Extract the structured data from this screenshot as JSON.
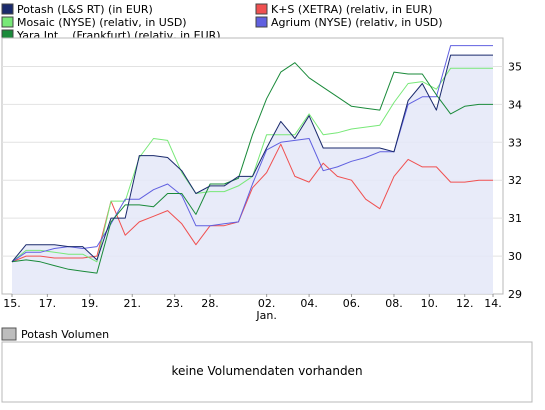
{
  "legend": [
    {
      "label": "Potash (L&S RT) (in EUR)",
      "color": "#1a2a6c"
    },
    {
      "label": "K+S (XETRA) (relativ, in EUR)",
      "color": "#f05050"
    },
    {
      "label": "Mosaic (NYSE) (relativ, in USD)",
      "color": "#78e878"
    },
    {
      "label": "Agrium (NYSE) (relativ, in USD)",
      "color": "#6060e0"
    },
    {
      "label": "Yara Int... (Frankfurt) (relativ, in EUR)",
      "color": "#1a8a3a"
    }
  ],
  "volume": {
    "title": "Potash Volumen",
    "message": "keine Volumendaten vorhanden"
  },
  "chart_data": {
    "type": "line",
    "x": [
      0,
      1,
      2,
      3,
      4,
      5,
      6,
      7,
      8,
      9,
      10,
      11,
      12,
      13,
      14,
      15,
      16,
      17,
      18,
      19,
      20,
      21,
      22,
      23,
      24,
      25,
      26,
      27,
      28,
      29,
      30,
      31,
      32,
      33,
      34
    ],
    "x_ticks": [
      {
        "i": 0,
        "label": "15."
      },
      {
        "i": 2.5,
        "label": "17."
      },
      {
        "i": 5.5,
        "label": "19."
      },
      {
        "i": 8.5,
        "label": "21."
      },
      {
        "i": 11.5,
        "label": "23."
      },
      {
        "i": 14,
        "label": "28."
      },
      {
        "i": 18,
        "label": "02.",
        "sub": "Jan."
      },
      {
        "i": 21,
        "label": "04."
      },
      {
        "i": 24,
        "label": "06."
      },
      {
        "i": 27,
        "label": "08."
      },
      {
        "i": 29.5,
        "label": "10."
      },
      {
        "i": 32,
        "label": "12."
      },
      {
        "i": 34,
        "label": "14."
      }
    ],
    "y_ticks": [
      29,
      30,
      31,
      32,
      33,
      34,
      35
    ],
    "ylim": [
      29,
      35.75
    ],
    "series": [
      {
        "name": "Potash (L&S RT) (in EUR)",
        "color": "#1a2a6c",
        "fill": true,
        "values": [
          29.85,
          30.3,
          30.3,
          30.3,
          30.25,
          30.25,
          29.9,
          31.0,
          31.0,
          32.65,
          32.65,
          32.6,
          32.25,
          31.65,
          31.85,
          31.85,
          32.1,
          32.1,
          32.85,
          33.55,
          33.1,
          33.7,
          32.85,
          32.85,
          32.85,
          32.85,
          32.85,
          32.75,
          34.1,
          34.55,
          33.85,
          35.3,
          35.3,
          35.3,
          35.3
        ]
      },
      {
        "name": "K+S (XETRA) (relativ, in EUR)",
        "color": "#f05050",
        "fill": false,
        "values": [
          29.85,
          30.0,
          30.0,
          29.95,
          29.95,
          29.95,
          30.0,
          31.45,
          30.55,
          30.9,
          31.05,
          31.2,
          30.85,
          30.3,
          30.8,
          30.8,
          30.9,
          31.8,
          32.2,
          32.95,
          32.1,
          31.95,
          32.45,
          32.1,
          32.0,
          31.5,
          31.25,
          32.1,
          32.55,
          32.35,
          32.35,
          31.95,
          31.95,
          32.0,
          32.0
        ]
      },
      {
        "name": "Mosaic (NYSE) (relativ, in USD)",
        "color": "#78e878",
        "fill": false,
        "values": [
          29.85,
          30.15,
          30.15,
          30.1,
          30.05,
          30.05,
          29.85,
          31.45,
          31.45,
          32.6,
          33.1,
          33.05,
          32.2,
          31.65,
          31.7,
          31.7,
          31.85,
          32.1,
          33.2,
          33.2,
          33.2,
          33.75,
          33.2,
          33.25,
          33.35,
          33.4,
          33.45,
          34.05,
          34.55,
          34.6,
          34.4,
          34.95,
          34.95,
          34.95,
          34.95
        ]
      },
      {
        "name": "Agrium (NYSE) (relativ, in USD)",
        "color": "#6060e0",
        "fill": false,
        "values": [
          29.85,
          30.1,
          30.1,
          30.2,
          30.25,
          30.2,
          30.25,
          30.85,
          31.5,
          31.5,
          31.75,
          31.9,
          31.6,
          30.8,
          30.8,
          30.85,
          30.9,
          31.9,
          32.8,
          33.0,
          33.05,
          33.1,
          32.25,
          32.35,
          32.5,
          32.6,
          32.75,
          32.75,
          34.0,
          34.2,
          34.2,
          35.55,
          35.55,
          35.55,
          35.55
        ]
      },
      {
        "name": "Yara Int... (Frankfurt) (relativ, in EUR)",
        "color": "#1a8a3a",
        "fill": false,
        "values": [
          29.85,
          29.9,
          29.85,
          29.75,
          29.65,
          29.6,
          29.55,
          30.9,
          31.35,
          31.35,
          31.3,
          31.65,
          31.65,
          31.1,
          31.9,
          31.9,
          32.05,
          33.2,
          34.15,
          34.85,
          35.1,
          34.7,
          34.45,
          34.2,
          33.95,
          33.9,
          33.85,
          34.85,
          34.8,
          34.8,
          34.25,
          33.75,
          33.95,
          34.0,
          34.0
        ]
      }
    ]
  }
}
